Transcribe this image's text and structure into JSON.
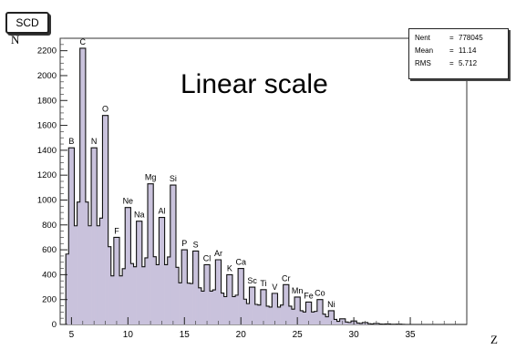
{
  "window": {
    "title": "SCD"
  },
  "stats": [
    {
      "name": "Nent",
      "value": "778045"
    },
    {
      "name": "Mean",
      "value": "11.14"
    },
    {
      "name": "RMS",
      "value": "5.712"
    }
  ],
  "chart_data": {
    "type": "bar",
    "title": "",
    "annotation": "Linear scale",
    "xlabel": "Z",
    "ylabel": "N",
    "xlim": [
      4,
      40
    ],
    "ylim": [
      0,
      2300
    ],
    "x_ticks": [
      5,
      10,
      15,
      20,
      25,
      30,
      35
    ],
    "y_ticks": [
      0,
      200,
      400,
      600,
      800,
      1000,
      1200,
      1400,
      1600,
      1800,
      2000,
      2200
    ],
    "fill_color": "#c9c2dc",
    "bin_width": 0.25,
    "peaks": [
      {
        "z": 5,
        "value": 1420,
        "label": "B"
      },
      {
        "z": 6,
        "value": 2220,
        "label": "C"
      },
      {
        "z": 7,
        "value": 1420,
        "label": "N"
      },
      {
        "z": 8,
        "value": 1680,
        "label": "O"
      },
      {
        "z": 9,
        "value": 700,
        "label": "F"
      },
      {
        "z": 10,
        "value": 940,
        "label": "Ne"
      },
      {
        "z": 11,
        "value": 830,
        "label": "Na"
      },
      {
        "z": 12,
        "value": 1130,
        "label": "Mg"
      },
      {
        "z": 13,
        "value": 860,
        "label": "Al"
      },
      {
        "z": 14,
        "value": 1120,
        "label": "Si"
      },
      {
        "z": 15,
        "value": 600,
        "label": "P"
      },
      {
        "z": 16,
        "value": 590,
        "label": "S"
      },
      {
        "z": 17,
        "value": 480,
        "label": "Cl"
      },
      {
        "z": 18,
        "value": 520,
        "label": "Ar"
      },
      {
        "z": 19,
        "value": 400,
        "label": "K"
      },
      {
        "z": 20,
        "value": 450,
        "label": "Ca"
      },
      {
        "z": 21,
        "value": 300,
        "label": "Sc"
      },
      {
        "z": 22,
        "value": 280,
        "label": "Ti"
      },
      {
        "z": 23,
        "value": 250,
        "label": "V"
      },
      {
        "z": 24,
        "value": 320,
        "label": "Cr"
      },
      {
        "z": 25,
        "value": 220,
        "label": "Mn"
      },
      {
        "z": 26,
        "value": 180,
        "label": "Fe"
      },
      {
        "z": 27,
        "value": 200,
        "label": "Co"
      },
      {
        "z": 28,
        "value": 110,
        "label": "Ni"
      },
      {
        "z": 29,
        "value": 45,
        "label": ""
      },
      {
        "z": 30,
        "value": 28,
        "label": ""
      },
      {
        "z": 31,
        "value": 15,
        "label": ""
      },
      {
        "z": 32,
        "value": 8,
        "label": ""
      },
      {
        "z": 33,
        "value": 4,
        "label": ""
      },
      {
        "z": 34,
        "value": 2,
        "label": ""
      }
    ]
  }
}
